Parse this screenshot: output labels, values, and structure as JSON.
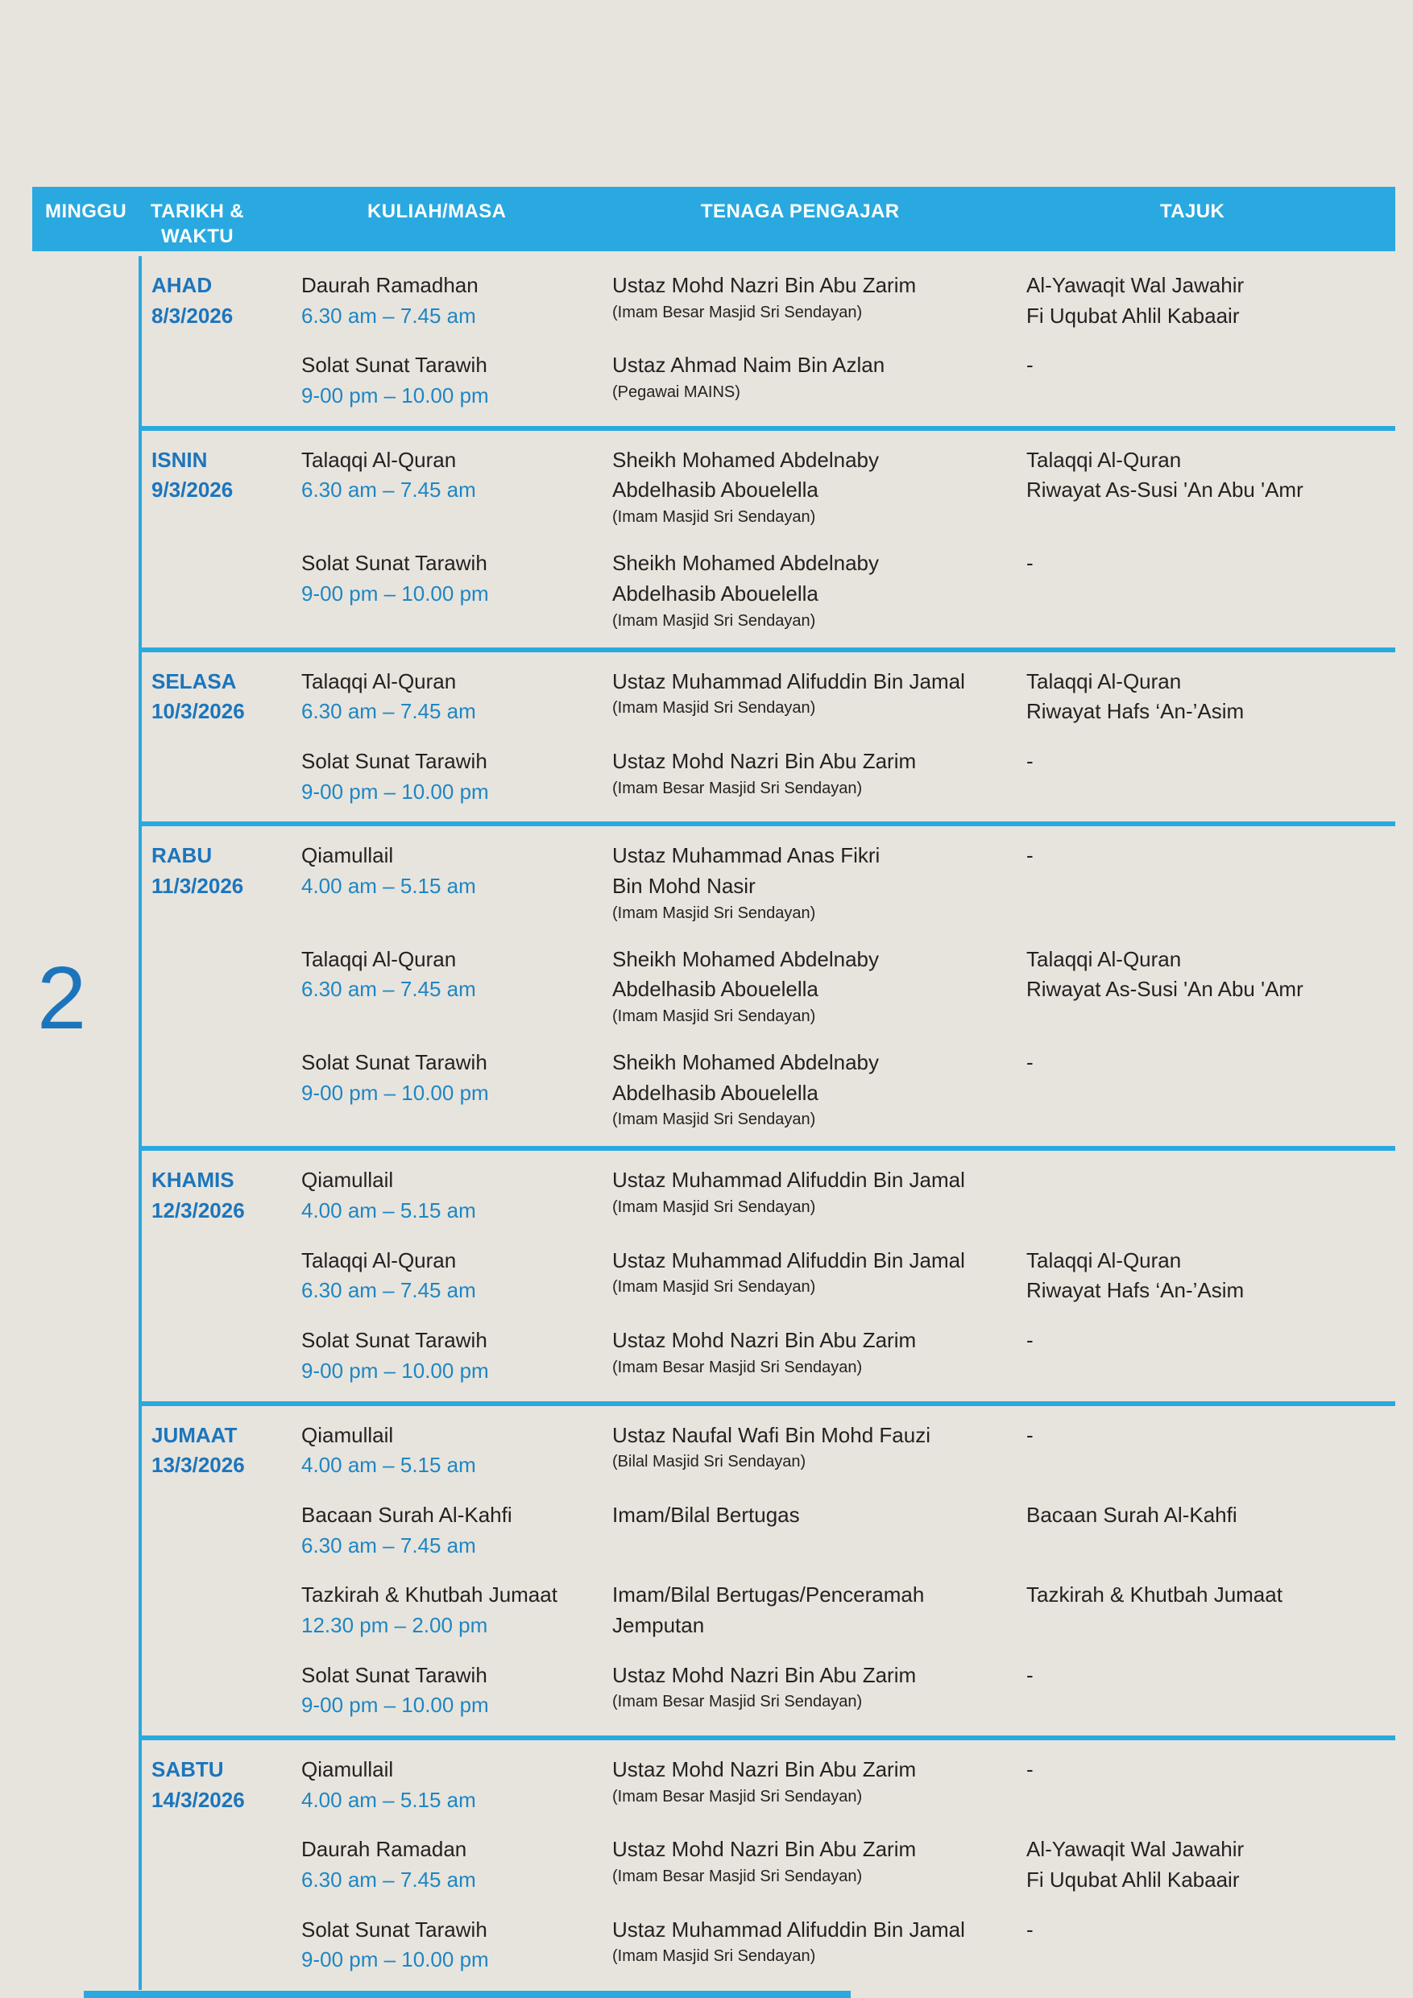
{
  "colors": {
    "page_bg": "#E7E4DD",
    "header_bg": "#29A9E0",
    "accent_line": "#29A9E0",
    "day_text": "#1C75BC",
    "time_text": "#1E86C4",
    "body_text": "#242122",
    "header_text": "#FFFFFF"
  },
  "header": {
    "minggu": "MINGGU",
    "tarikh_line1": "TARIKH &",
    "tarikh_line2": "WAKTU",
    "kuliah": "KULIAH/MASA",
    "tenaga": "TENAGA PENGAJAR",
    "tajuk": "TAJUK"
  },
  "week": {
    "number": "2"
  },
  "days": [
    {
      "day": "AHAD",
      "date": "8/3/2026",
      "entries": [
        {
          "activity": "Daurah Ramadhan",
          "time": "6.30 am – 7.45 am",
          "teacher": [
            "Ustaz Mohd Nazri Bin Abu Zarim"
          ],
          "role": "(Imam Besar Masjid Sri Sendayan)",
          "topic": [
            "Al-Yawaqit Wal Jawahir",
            "Fi Uqubat Ahlil Kabaair"
          ]
        },
        {
          "activity": "Solat Sunat Tarawih",
          "time": "9-00 pm – 10.00 pm",
          "teacher": [
            "Ustaz Ahmad Naim Bin Azlan"
          ],
          "role": "(Pegawai MAINS)",
          "topic": [
            "-"
          ]
        }
      ]
    },
    {
      "day": "ISNIN",
      "date": "9/3/2026",
      "entries": [
        {
          "activity": "Talaqqi Al-Quran",
          "time": "6.30 am – 7.45 am",
          "teacher": [
            "Sheikh Mohamed Abdelnaby",
            "Abdelhasib Abouelella"
          ],
          "role": "(Imam Masjid Sri Sendayan)",
          "topic": [
            "Talaqqi Al-Quran",
            "Riwayat As-Susi 'An Abu 'Amr"
          ]
        },
        {
          "activity": "Solat Sunat Tarawih",
          "time": "9-00 pm – 10.00 pm",
          "teacher": [
            "Sheikh Mohamed Abdelnaby",
            "Abdelhasib Abouelella"
          ],
          "role": "(Imam Masjid Sri Sendayan)",
          "topic": [
            "-"
          ]
        }
      ]
    },
    {
      "day": "SELASA",
      "date": "10/3/2026",
      "entries": [
        {
          "activity": "Talaqqi Al-Quran",
          "time": "6.30 am – 7.45 am",
          "teacher": [
            "Ustaz Muhammad Alifuddin Bin Jamal"
          ],
          "role": "(Imam Masjid Sri Sendayan)",
          "topic": [
            "Talaqqi Al-Quran",
            "Riwayat Hafs ‘An-’Asim"
          ]
        },
        {
          "activity": "Solat Sunat Tarawih",
          "time": "9-00 pm – 10.00 pm",
          "teacher": [
            "Ustaz Mohd Nazri Bin Abu Zarim"
          ],
          "role": "(Imam Besar Masjid Sri Sendayan)",
          "topic": [
            "-"
          ]
        }
      ]
    },
    {
      "day": "RABU",
      "date": "11/3/2026",
      "entries": [
        {
          "activity": "Qiamullail",
          "time": "4.00 am – 5.15 am",
          "teacher": [
            "Ustaz Muhammad Anas Fikri",
            "Bin Mohd Nasir"
          ],
          "role": "(Imam Masjid Sri Sendayan)",
          "topic": [
            "-"
          ]
        },
        {
          "activity": "Talaqqi Al-Quran",
          "time": "6.30 am – 7.45 am",
          "teacher": [
            "Sheikh Mohamed Abdelnaby",
            "Abdelhasib Abouelella"
          ],
          "role": "(Imam Masjid Sri Sendayan)",
          "topic": [
            "Talaqqi Al-Quran",
            "Riwayat As-Susi 'An Abu 'Amr"
          ]
        },
        {
          "activity": "Solat Sunat Tarawih",
          "time": "9-00 pm – 10.00 pm",
          "teacher": [
            "Sheikh Mohamed Abdelnaby",
            "Abdelhasib Abouelella"
          ],
          "role": "(Imam Masjid Sri Sendayan)",
          "topic": [
            "-"
          ]
        }
      ]
    },
    {
      "day": "KHAMIS",
      "date": "12/3/2026",
      "entries": [
        {
          "activity": "Qiamullail",
          "time": "4.00 am – 5.15 am",
          "teacher": [
            "Ustaz Muhammad Alifuddin Bin Jamal"
          ],
          "role": "(Imam Masjid Sri Sendayan)",
          "topic": []
        },
        {
          "activity": "Talaqqi Al-Quran",
          "time": "6.30 am – 7.45 am",
          "teacher": [
            "Ustaz Muhammad Alifuddin Bin Jamal"
          ],
          "role": "(Imam Masjid Sri Sendayan)",
          "topic": [
            "Talaqqi Al-Quran",
            "Riwayat Hafs ‘An-’Asim"
          ]
        },
        {
          "activity": "Solat Sunat Tarawih",
          "time": "9-00 pm – 10.00 pm",
          "teacher": [
            "Ustaz Mohd Nazri Bin Abu Zarim"
          ],
          "role": "(Imam Besar Masjid Sri Sendayan)",
          "topic": [
            "-"
          ]
        }
      ]
    },
    {
      "day": "JUMAAT",
      "date": "13/3/2026",
      "entries": [
        {
          "activity": "Qiamullail",
          "time": "4.00 am – 5.15 am",
          "teacher": [
            "Ustaz Naufal Wafi Bin Mohd Fauzi"
          ],
          "role": "(Bilal Masjid Sri Sendayan)",
          "topic": [
            "-"
          ]
        },
        {
          "activity": "Bacaan Surah Al-Kahfi",
          "time": "6.30 am – 7.45 am",
          "teacher": [
            "Imam/Bilal Bertugas"
          ],
          "role": "",
          "topic": [
            "Bacaan Surah Al-Kahfi"
          ]
        },
        {
          "activity": "Tazkirah & Khutbah Jumaat",
          "time": "12.30 pm – 2.00 pm",
          "teacher": [
            "Imam/Bilal Bertugas/Penceramah",
            "Jemputan"
          ],
          "role": "",
          "topic": [
            "Tazkirah & Khutbah Jumaat"
          ]
        },
        {
          "activity": "Solat Sunat Tarawih",
          "time": "9-00 pm – 10.00 pm",
          "teacher": [
            "Ustaz Mohd Nazri Bin Abu Zarim"
          ],
          "role": "(Imam Besar Masjid Sri Sendayan)",
          "topic": [
            "-"
          ]
        }
      ]
    },
    {
      "day": "SABTU",
      "date": "14/3/2026",
      "entries": [
        {
          "activity": "Qiamullail",
          "time": "4.00 am – 5.15 am",
          "teacher": [
            "Ustaz Mohd Nazri Bin Abu Zarim"
          ],
          "role": "(Imam Besar Masjid Sri Sendayan)",
          "topic": [
            "-"
          ]
        },
        {
          "activity": "Daurah Ramadan",
          "time": "6.30 am – 7.45 am",
          "teacher": [
            "Ustaz Mohd Nazri Bin Abu Zarim"
          ],
          "role": "(Imam Besar Masjid Sri Sendayan)",
          "topic": [
            "Al-Yawaqit Wal Jawahir",
            "Fi Uqubat Ahlil Kabaair"
          ]
        },
        {
          "activity": "Solat Sunat Tarawih",
          "time": "9-00 pm – 10.00 pm",
          "teacher": [
            "Ustaz Muhammad Alifuddin Bin Jamal"
          ],
          "role": "(Imam Masjid Sri Sendayan)",
          "topic": [
            "-"
          ]
        }
      ]
    }
  ]
}
